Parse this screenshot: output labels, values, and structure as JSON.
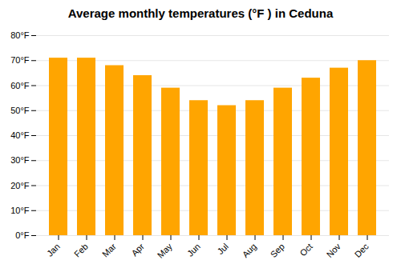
{
  "chart_data": {
    "type": "bar",
    "title": "Average monthly temperatures (°F ) in Ceduna",
    "categories": [
      "Jan",
      "Feb",
      "Mar",
      "Apr",
      "May",
      "Jun",
      "Jul",
      "Aug",
      "Sep",
      "Oct",
      "Nov",
      "Dec"
    ],
    "values": [
      71,
      71,
      68,
      64,
      59,
      54,
      52,
      54,
      59,
      63,
      67,
      70
    ],
    "color": "#FFA500",
    "ylim": [
      0,
      80
    ],
    "yticks": [
      {
        "value": 0,
        "label": "0°F"
      },
      {
        "value": 10,
        "label": "10°F"
      },
      {
        "value": 20,
        "label": "20°F"
      },
      {
        "value": 30,
        "label": "30°F"
      },
      {
        "value": 40,
        "label": "40°F"
      },
      {
        "value": 50,
        "label": "50°F"
      },
      {
        "value": 60,
        "label": "60°F"
      },
      {
        "value": 70,
        "label": "70°F"
      },
      {
        "value": 80,
        "label": "80°F"
      }
    ],
    "grid": true
  }
}
